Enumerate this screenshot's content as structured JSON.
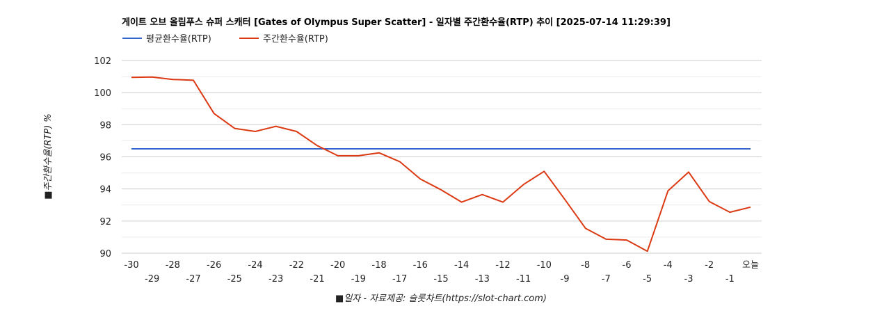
{
  "chart_data": {
    "type": "line",
    "title": "게이트 오브 올림푸스 슈퍼 스캐터 [Gates of Olympus Super Scatter] - 일자별 주간환수율(RTP) 추이 [2025-07-14 11:29:39]",
    "xlabel": "■일자 - 자료제공: 슬롯차트(https://slot-chart.com)",
    "ylabel": "■주간환수율(RTP) %",
    "ylim": [
      90,
      102
    ],
    "yticks": [
      "90",
      "92",
      "94",
      "96",
      "98",
      "100",
      "102"
    ],
    "categories": [
      "-30",
      "-29",
      "-28",
      "-27",
      "-26",
      "-25",
      "-24",
      "-23",
      "-22",
      "-21",
      "-20",
      "-19",
      "-18",
      "-17",
      "-16",
      "-15",
      "-14",
      "-13",
      "-12",
      "-11",
      "-10",
      "-9",
      "-8",
      "-7",
      "-6",
      "-5",
      "-4",
      "-3",
      "-2",
      "-1",
      "오늘"
    ],
    "legend_position": "top-left",
    "grid": true,
    "series": [
      {
        "name": "평균환수율(RTP)",
        "color": "#3366cc",
        "values": [
          96.5,
          96.5,
          96.5,
          96.5,
          96.5,
          96.5,
          96.5,
          96.5,
          96.5,
          96.5,
          96.5,
          96.5,
          96.5,
          96.5,
          96.5,
          96.5,
          96.5,
          96.5,
          96.5,
          96.5,
          96.5,
          96.5,
          96.5,
          96.5,
          96.5,
          96.5,
          96.5,
          96.5,
          96.5,
          96.5,
          96.5
        ]
      },
      {
        "name": "주간환수율(RTP)",
        "color": "#dc3912",
        "values": [
          100.95,
          100.97,
          100.82,
          100.77,
          98.7,
          97.77,
          97.58,
          97.9,
          97.58,
          96.7,
          96.07,
          96.07,
          96.25,
          95.7,
          94.62,
          93.95,
          93.18,
          93.65,
          93.18,
          94.28,
          95.1,
          93.35,
          91.55,
          90.87,
          90.82,
          90.12,
          93.88,
          95.05,
          93.22,
          92.55,
          92.87
        ]
      }
    ]
  }
}
